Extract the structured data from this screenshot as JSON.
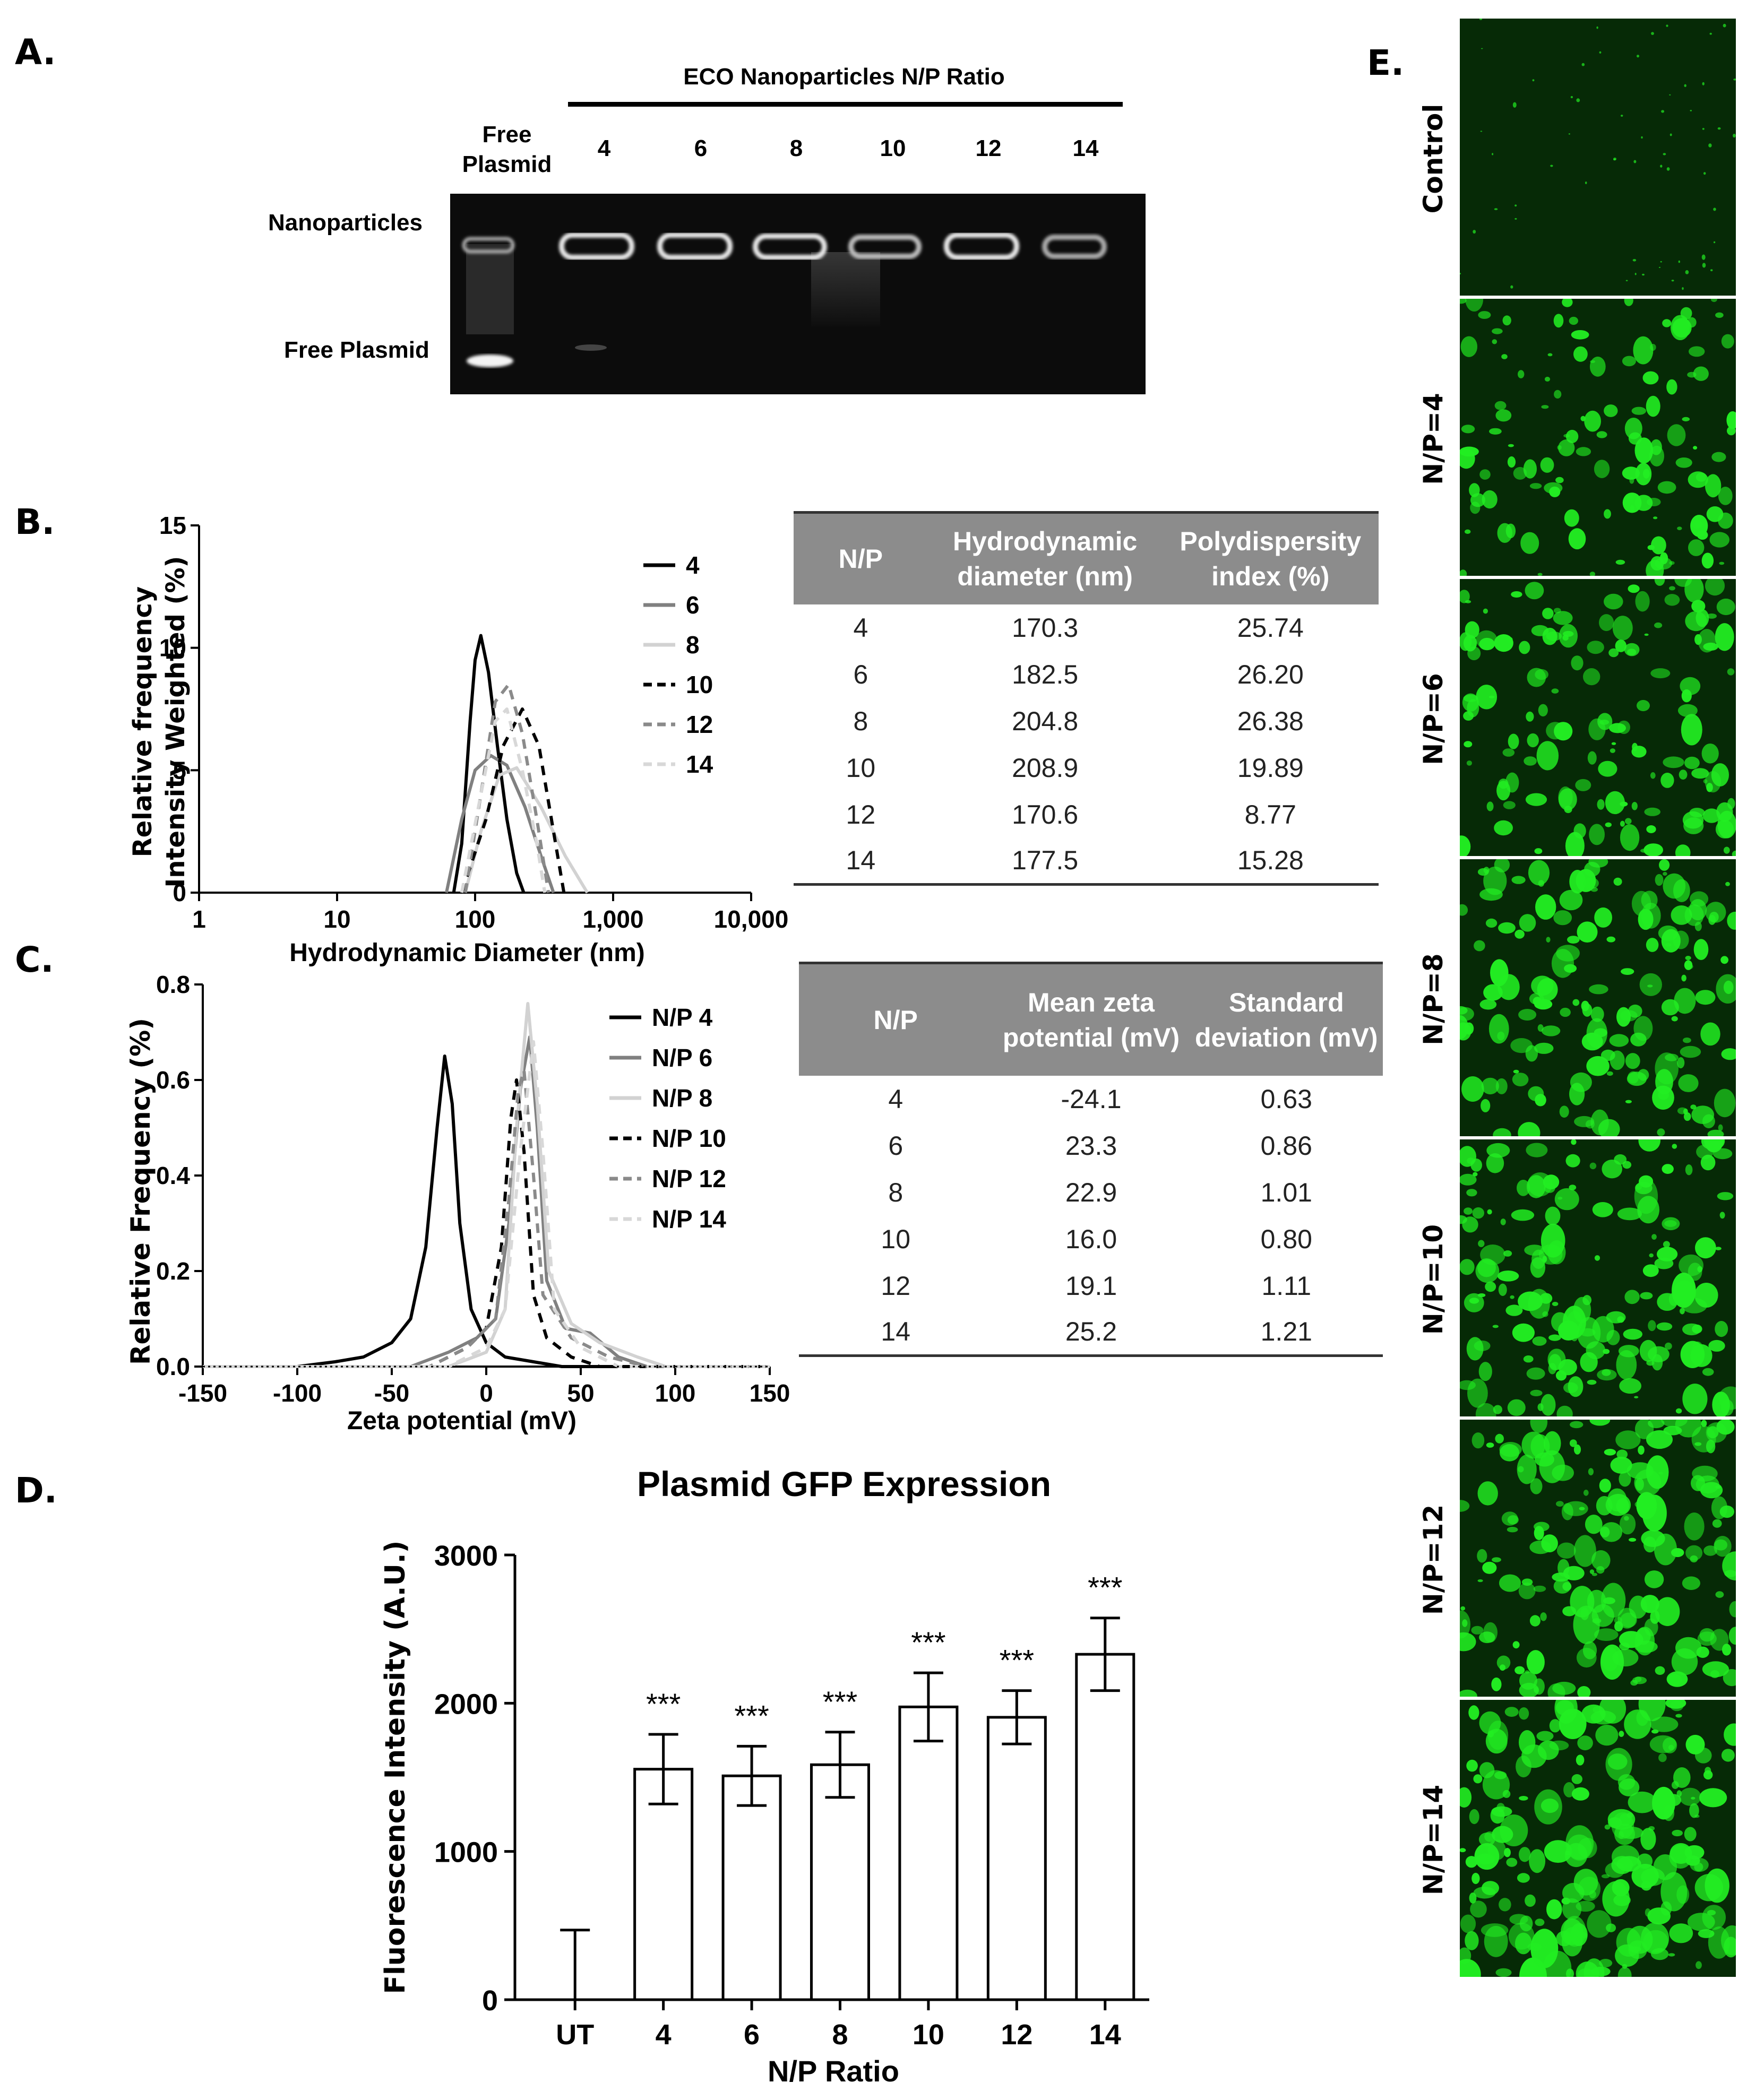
{
  "panel_labels": {
    "a": "A.",
    "b": "B.",
    "c": "C.",
    "d": "D.",
    "e": "E."
  },
  "panel_a": {
    "header": "ECO Nanoparticles N/P Ratio",
    "free_plasmid_col": "Free Plasmid",
    "columns": [
      "4",
      "6",
      "8",
      "10",
      "12",
      "14"
    ],
    "row_labels": [
      "Nanoparticles",
      "Free Plasmid"
    ]
  },
  "panel_b_table": {
    "headers": [
      "N/P",
      "Hydrodynamic diameter (nm)",
      "Polydispersity index (%)"
    ],
    "rows": [
      [
        "4",
        "170.3",
        "25.74"
      ],
      [
        "6",
        "182.5",
        "26.20"
      ],
      [
        "8",
        "204.8",
        "26.38"
      ],
      [
        "10",
        "208.9",
        "19.89"
      ],
      [
        "12",
        "170.6",
        "8.77"
      ],
      [
        "14",
        "177.5",
        "15.28"
      ]
    ]
  },
  "panel_c_table": {
    "headers": [
      "N/P",
      "Mean zeta potential (mV)",
      "Standard deviation (mV)"
    ],
    "rows": [
      [
        "4",
        "-24.1",
        "0.63"
      ],
      [
        "6",
        "23.3",
        "0.86"
      ],
      [
        "8",
        "22.9",
        "1.01"
      ],
      [
        "10",
        "16.0",
        "0.80"
      ],
      [
        "12",
        "19.1",
        "1.11"
      ],
      [
        "14",
        "25.2",
        "1.21"
      ]
    ]
  },
  "panel_e": {
    "labels": [
      "Control",
      "N/P=4",
      "N/P=6",
      "N/P=8",
      "N/P=10",
      "N/P=12",
      "N/P=14"
    ],
    "colors": {
      "background": "#062a06",
      "signal": "#22ee22"
    }
  },
  "chart_data": [
    {
      "id": "B",
      "type": "line",
      "ylabel": "Relative frequency Intensity Weighted  (%)",
      "xlabel": "Hydrodynamic  Diameter  (nm)",
      "xscale": "log",
      "xlim": [
        1,
        10000
      ],
      "ylim": [
        0,
        15
      ],
      "xticks": [
        "1",
        "10",
        "100",
        "1,000",
        "10,000"
      ],
      "yticks": [
        "0",
        "5",
        "10",
        "15"
      ],
      "legend_position": "right",
      "series": [
        {
          "name": "4",
          "color": "#000000",
          "dash": "",
          "points": [
            [
              70,
              0
            ],
            [
              80,
              2
            ],
            [
              92,
              7
            ],
            [
              100,
              9.5
            ],
            [
              110,
              10.5
            ],
            [
              125,
              9
            ],
            [
              145,
              6
            ],
            [
              170,
              3
            ],
            [
              200,
              0.8
            ],
            [
              225,
              0
            ]
          ]
        },
        {
          "name": "6",
          "color": "#808080",
          "dash": "",
          "points": [
            [
              62,
              0
            ],
            [
              80,
              3
            ],
            [
              100,
              5
            ],
            [
              130,
              5.6
            ],
            [
              170,
              5.2
            ],
            [
              230,
              3.5
            ],
            [
              300,
              1.5
            ],
            [
              370,
              0
            ]
          ]
        },
        {
          "name": "8",
          "color": "#d2d2d2",
          "dash": "",
          "points": [
            [
              85,
              0
            ],
            [
              110,
              2.5
            ],
            [
              150,
              4.8
            ],
            [
              200,
              5.1
            ],
            [
              300,
              3.5
            ],
            [
              450,
              1.5
            ],
            [
              650,
              0
            ]
          ]
        },
        {
          "name": "10",
          "color": "#000000",
          "dash": "18,14",
          "points": [
            [
              80,
              0
            ],
            [
              120,
              3
            ],
            [
              160,
              6
            ],
            [
              220,
              7.5
            ],
            [
              290,
              6
            ],
            [
              370,
              2.5
            ],
            [
              440,
              0
            ]
          ]
        },
        {
          "name": "12",
          "color": "#8a8a8a",
          "dash": "18,14",
          "points": [
            [
              85,
              0
            ],
            [
              110,
              4
            ],
            [
              140,
              7.8
            ],
            [
              175,
              8.5
            ],
            [
              220,
              6.5
            ],
            [
              280,
              3
            ],
            [
              340,
              0
            ]
          ]
        },
        {
          "name": "14",
          "color": "#d8d8d8",
          "dash": "18,14",
          "points": [
            [
              80,
              0
            ],
            [
              110,
              4
            ],
            [
              140,
              7
            ],
            [
              170,
              7.5
            ],
            [
              220,
              5
            ],
            [
              280,
              2
            ],
            [
              320,
              0
            ]
          ]
        }
      ]
    },
    {
      "id": "C",
      "type": "line",
      "ylabel": "Relative Frequency (%)",
      "xlabel": "Zeta potential (mV)",
      "xlim": [
        -150,
        150
      ],
      "ylim": [
        0,
        0.8
      ],
      "xticks": [
        "-150",
        "-100",
        "-50",
        "0",
        "50",
        "100",
        "150"
      ],
      "yticks": [
        "0.0",
        "0.2",
        "0.4",
        "0.6",
        "0.8"
      ],
      "legend_position": "right",
      "series": [
        {
          "name": "N/P 4",
          "color": "#000000",
          "dash": "",
          "points": [
            [
              -150,
              0
            ],
            [
              -100,
              0
            ],
            [
              -80,
              0.01
            ],
            [
              -65,
              0.02
            ],
            [
              -50,
              0.05
            ],
            [
              -40,
              0.1
            ],
            [
              -32,
              0.25
            ],
            [
              -26,
              0.5
            ],
            [
              -22,
              0.65
            ],
            [
              -18,
              0.55
            ],
            [
              -14,
              0.3
            ],
            [
              -8,
              0.12
            ],
            [
              0,
              0.05
            ],
            [
              10,
              0.02
            ],
            [
              25,
              0.01
            ],
            [
              40,
              0
            ],
            [
              150,
              0
            ]
          ]
        },
        {
          "name": "N/P 6",
          "color": "#808080",
          "dash": "",
          "points": [
            [
              -150,
              0
            ],
            [
              -40,
              0
            ],
            [
              -20,
              0.03
            ],
            [
              -5,
              0.06
            ],
            [
              5,
              0.1
            ],
            [
              12,
              0.3
            ],
            [
              18,
              0.58
            ],
            [
              23,
              0.69
            ],
            [
              27,
              0.5
            ],
            [
              32,
              0.18
            ],
            [
              42,
              0.08
            ],
            [
              55,
              0.07
            ],
            [
              70,
              0.02
            ],
            [
              85,
              0
            ],
            [
              150,
              0
            ]
          ]
        },
        {
          "name": "N/P 8",
          "color": "#d2d2d2",
          "dash": "",
          "points": [
            [
              -150,
              0
            ],
            [
              -20,
              0
            ],
            [
              0,
              0.03
            ],
            [
              10,
              0.12
            ],
            [
              16,
              0.5
            ],
            [
              22,
              0.76
            ],
            [
              27,
              0.55
            ],
            [
              33,
              0.2
            ],
            [
              45,
              0.09
            ],
            [
              60,
              0.05
            ],
            [
              80,
              0.02
            ],
            [
              95,
              0
            ],
            [
              150,
              0
            ]
          ]
        },
        {
          "name": "N/P 10",
          "color": "#000000",
          "dash": "18,14",
          "points": [
            [
              -150,
              0
            ],
            [
              -30,
              0
            ],
            [
              -10,
              0.04
            ],
            [
              0,
              0.08
            ],
            [
              8,
              0.25
            ],
            [
              13,
              0.52
            ],
            [
              16,
              0.6
            ],
            [
              20,
              0.45
            ],
            [
              25,
              0.15
            ],
            [
              32,
              0.06
            ],
            [
              45,
              0.02
            ],
            [
              60,
              0
            ],
            [
              150,
              0
            ]
          ]
        },
        {
          "name": "N/P 12",
          "color": "#8a8a8a",
          "dash": "18,14",
          "points": [
            [
              -150,
              0
            ],
            [
              -30,
              0
            ],
            [
              -10,
              0.04
            ],
            [
              5,
              0.1
            ],
            [
              12,
              0.35
            ],
            [
              17,
              0.58
            ],
            [
              20,
              0.62
            ],
            [
              25,
              0.4
            ],
            [
              30,
              0.15
            ],
            [
              45,
              0.06
            ],
            [
              65,
              0.02
            ],
            [
              85,
              0
            ],
            [
              150,
              0
            ]
          ]
        },
        {
          "name": "N/P 14",
          "color": "#d8d8d8",
          "dash": "18,14",
          "points": [
            [
              -150,
              0
            ],
            [
              -20,
              0
            ],
            [
              0,
              0.04
            ],
            [
              10,
              0.12
            ],
            [
              18,
              0.45
            ],
            [
              25,
              0.68
            ],
            [
              30,
              0.45
            ],
            [
              36,
              0.12
            ],
            [
              50,
              0.04
            ],
            [
              70,
              0
            ],
            [
              150,
              0
            ]
          ]
        }
      ]
    },
    {
      "id": "D",
      "type": "bar",
      "title": "Plasmid GFP Expression",
      "ylabel": "Fluorescence Intensity (A.U.)",
      "xlabel": "N/P  Ratio",
      "categories": [
        "UT",
        "4",
        "6",
        "8",
        "10",
        "12",
        "14"
      ],
      "values": [
        0,
        1555,
        1510,
        1585,
        1975,
        1905,
        2330
      ],
      "errors": [
        470,
        235,
        200,
        220,
        230,
        180,
        245
      ],
      "significance": [
        "",
        "***",
        "***",
        "***",
        "***",
        "***",
        "***"
      ],
      "ylim": [
        0,
        3000
      ],
      "yticks": [
        "0",
        "1000",
        "2000",
        "3000"
      ]
    }
  ]
}
